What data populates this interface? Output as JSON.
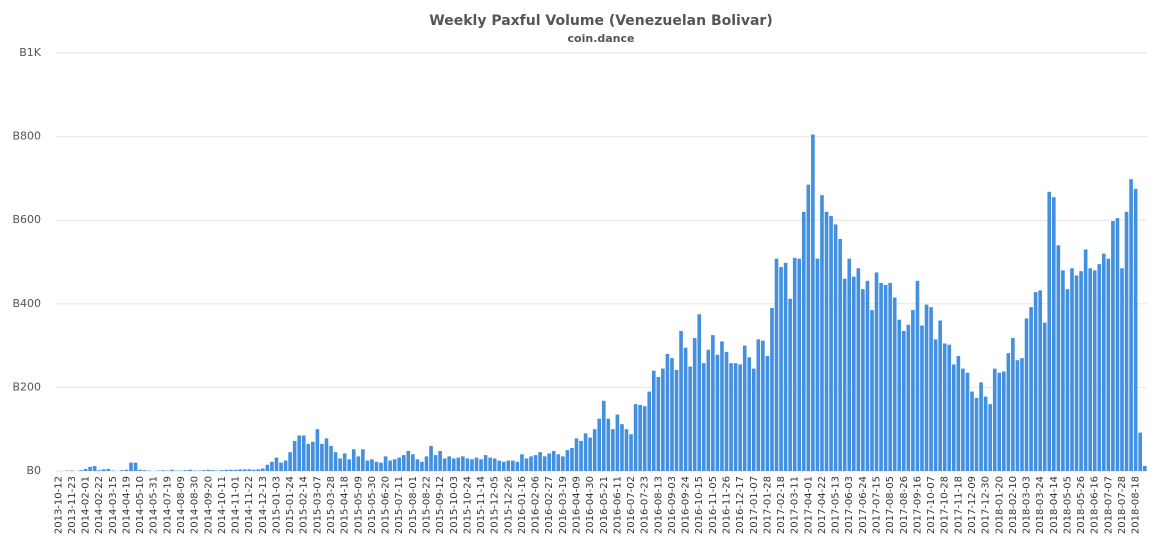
{
  "chart_data": {
    "type": "bar",
    "title": "Weekly Paxful Volume (Venezuelan Bolivar)",
    "subtitle": "coin.dance",
    "color": "#4390e1",
    "grid": true,
    "ylim": [
      0,
      1000
    ],
    "yticks": [
      {
        "value": 0,
        "label": "B0"
      },
      {
        "value": 200,
        "label": "B200"
      },
      {
        "value": 400,
        "label": "B400"
      },
      {
        "value": 600,
        "label": "B600"
      },
      {
        "value": 800,
        "label": "B800"
      },
      {
        "value": 1000,
        "label": "B1K"
      }
    ],
    "categories": [
      "2013-10-12",
      null,
      null,
      "2013-11-23",
      null,
      null,
      "2014-02-01",
      null,
      null,
      "2014-02-22",
      null,
      null,
      "2014-03-15",
      null,
      null,
      "2014-04-19",
      null,
      null,
      "2014-05-10",
      null,
      null,
      "2014-05-31",
      null,
      null,
      "2014-07-19",
      null,
      null,
      "2014-08-09",
      null,
      null,
      "2014-08-30",
      null,
      null,
      "2014-09-20",
      null,
      null,
      "2014-10-11",
      null,
      null,
      "2014-11-01",
      null,
      null,
      "2014-11-22",
      null,
      null,
      "2014-12-13",
      null,
      null,
      "2015-01-03",
      null,
      null,
      "2015-01-24",
      null,
      null,
      "2015-02-14",
      null,
      null,
      "2015-03-07",
      null,
      null,
      "2015-03-28",
      null,
      null,
      "2015-04-18",
      null,
      null,
      "2015-05-09",
      null,
      null,
      "2015-05-30",
      null,
      null,
      "2015-06-20",
      null,
      null,
      "2015-07-11",
      null,
      null,
      "2015-08-01",
      null,
      null,
      "2015-08-22",
      null,
      null,
      "2015-09-12",
      null,
      null,
      "2015-10-03",
      null,
      null,
      "2015-10-24",
      null,
      null,
      "2015-11-14",
      null,
      null,
      "2015-12-05",
      null,
      null,
      "2015-12-26",
      null,
      null,
      "2016-01-16",
      null,
      null,
      "2016-02-06",
      null,
      null,
      "2016-02-27",
      null,
      null,
      "2016-03-19",
      null,
      null,
      "2016-04-09",
      null,
      null,
      "2016-04-30",
      null,
      null,
      "2016-05-21",
      null,
      null,
      "2016-06-11",
      null,
      null,
      "2016-07-02",
      null,
      null,
      "2016-07-23",
      null,
      null,
      "2016-08-13",
      null,
      null,
      "2016-09-03",
      null,
      null,
      "2016-09-24",
      null,
      null,
      "2016-10-15",
      null,
      null,
      "2016-11-05",
      null,
      null,
      "2016-11-26",
      null,
      null,
      "2016-12-17",
      null,
      null,
      "2017-01-07",
      null,
      null,
      "2017-01-28",
      null,
      null,
      "2017-02-18",
      null,
      null,
      "2017-03-11",
      null,
      null,
      "2017-04-01",
      null,
      null,
      "2017-04-22",
      null,
      null,
      "2017-05-13",
      null,
      null,
      "2017-06-03",
      null,
      null,
      "2017-06-24",
      null,
      null,
      "2017-07-15",
      null,
      null,
      "2017-08-05",
      null,
      null,
      "2017-08-26",
      null,
      null,
      "2017-09-16",
      null,
      null,
      "2017-10-07",
      null,
      null,
      "2017-10-28",
      null,
      null,
      "2017-11-18",
      null,
      null,
      "2017-12-09",
      null,
      null,
      "2017-12-30",
      null,
      null,
      "2018-01-20",
      null,
      null,
      "2018-02-10",
      null,
      null,
      "2018-03-03",
      null,
      null,
      "2018-03-24",
      null,
      null,
      "2018-04-14",
      null,
      null,
      "2018-05-05",
      null,
      null,
      "2018-05-26",
      null,
      null,
      "2018-06-16",
      null,
      null,
      "2018-07-07",
      null,
      null,
      "2018-07-28",
      null,
      null,
      "2018-08-18",
      null,
      null
    ],
    "values": [
      0,
      0,
      1,
      1,
      0,
      2,
      5,
      10,
      12,
      2,
      4,
      5,
      1,
      0,
      2,
      3,
      20,
      20,
      3,
      2,
      1,
      0,
      1,
      2,
      1,
      3,
      1,
      1,
      2,
      3,
      1,
      1,
      2,
      3,
      2,
      1,
      2,
      3,
      3,
      3,
      4,
      4,
      4,
      3,
      4,
      6,
      15,
      22,
      32,
      20,
      25,
      45,
      72,
      85,
      85,
      65,
      70,
      100,
      65,
      78,
      60,
      45,
      30,
      42,
      28,
      52,
      35,
      52,
      25,
      28,
      22,
      20,
      35,
      25,
      28,
      32,
      38,
      48,
      40,
      28,
      22,
      35,
      60,
      38,
      48,
      30,
      35,
      30,
      32,
      35,
      30,
      28,
      32,
      28,
      38,
      32,
      30,
      25,
      22,
      25,
      25,
      22,
      40,
      30,
      35,
      38,
      45,
      35,
      42,
      48,
      40,
      35,
      50,
      55,
      78,
      72,
      90,
      80,
      100,
      125,
      168,
      125,
      100,
      135,
      112,
      100,
      88,
      160,
      158,
      155,
      190,
      240,
      225,
      245,
      280,
      270,
      242,
      335,
      295,
      250,
      318,
      375,
      258,
      290,
      325,
      278,
      310,
      285,
      258,
      258,
      255,
      300,
      272,
      245,
      315,
      312,
      275,
      390,
      508,
      488,
      498,
      412,
      510,
      508,
      620,
      685,
      805,
      508,
      660,
      620,
      610,
      590,
      555,
      460,
      508,
      465,
      485,
      435,
      455,
      385,
      475,
      450,
      445,
      450,
      415,
      362,
      335,
      350,
      385,
      455,
      348,
      398,
      392,
      315,
      360,
      305,
      302,
      255,
      275,
      245,
      235,
      190,
      175,
      212,
      178,
      160,
      245,
      235,
      238,
      282,
      318,
      265,
      270,
      365,
      392,
      428,
      432,
      355,
      668,
      655,
      540,
      480,
      435,
      485,
      468,
      478,
      530,
      485,
      480,
      495,
      520,
      508,
      598,
      605,
      485,
      620,
      698,
      675,
      92,
      12
    ]
  }
}
